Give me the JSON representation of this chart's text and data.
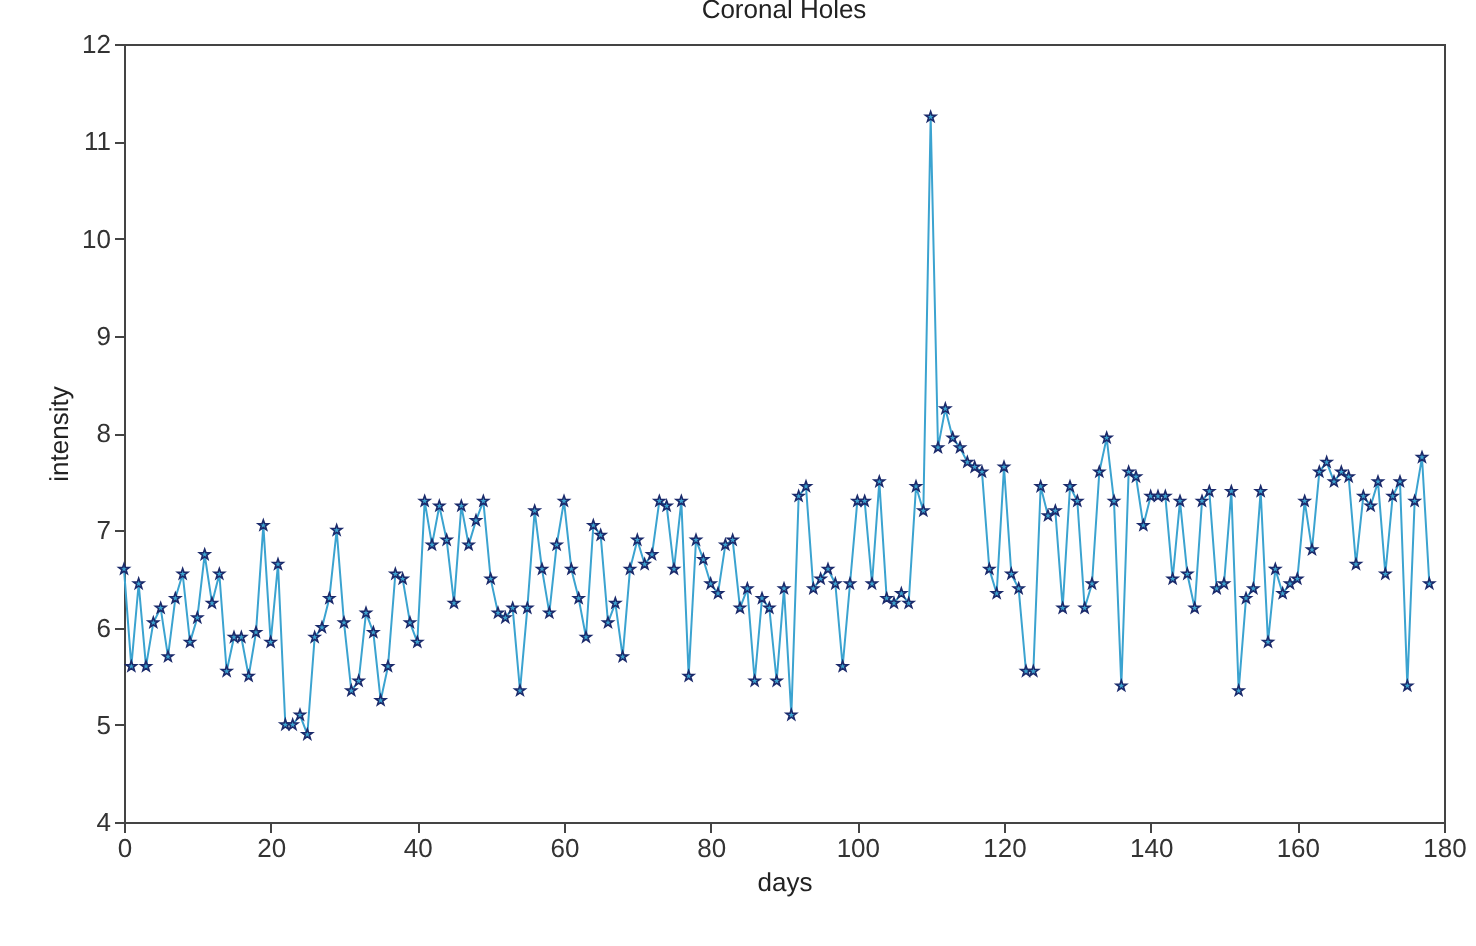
{
  "chart_data": {
    "type": "line",
    "title": "Coronal Holes",
    "xlabel": "days",
    "ylabel": "intensity",
    "x": [
      0,
      1,
      2,
      3,
      4,
      5,
      6,
      7,
      8,
      9,
      10,
      11,
      12,
      13,
      14,
      15,
      16,
      17,
      18,
      19,
      20,
      21,
      22,
      23,
      24,
      25,
      26,
      27,
      28,
      29,
      30,
      31,
      32,
      33,
      34,
      35,
      36,
      37,
      38,
      39,
      40,
      41,
      42,
      43,
      44,
      45,
      46,
      47,
      48,
      49,
      50,
      51,
      52,
      53,
      54,
      55,
      56,
      57,
      58,
      59,
      60,
      61,
      62,
      63,
      64,
      65,
      66,
      67,
      68,
      69,
      70,
      71,
      72,
      73,
      74,
      75,
      76,
      77,
      78,
      79,
      80,
      81,
      82,
      83,
      84,
      85,
      86,
      87,
      88,
      89,
      90,
      91,
      92,
      93,
      94,
      95,
      96,
      97,
      98,
      99,
      100,
      101,
      102,
      103,
      104,
      105,
      106,
      107,
      108,
      109,
      110,
      111,
      112,
      113,
      114,
      115,
      116,
      117,
      118,
      119,
      120,
      121,
      122,
      123,
      124,
      125,
      126,
      127,
      128,
      129,
      130,
      131,
      132,
      133,
      134,
      135,
      136,
      137,
      138,
      139,
      140,
      141,
      142,
      143,
      144,
      145,
      146,
      147,
      148,
      149,
      150,
      151,
      152,
      153,
      154,
      155,
      156,
      157,
      158,
      159,
      160,
      161,
      162,
      163,
      164,
      165,
      166,
      167,
      168,
      169,
      170,
      171,
      172,
      173,
      174,
      175,
      176,
      177,
      178
    ],
    "series": [
      {
        "color": "#3ba3d0",
        "values": [
          6.6,
          5.6,
          6.45,
          5.6,
          6.05,
          6.2,
          5.7,
          6.3,
          6.55,
          5.85,
          6.1,
          6.75,
          6.25,
          6.55,
          5.55,
          5.9,
          5.9,
          5.5,
          5.95,
          7.05,
          5.85,
          6.65,
          5.0,
          5.0,
          5.1,
          4.9,
          5.9,
          6.0,
          6.3,
          7.0,
          6.05,
          5.35,
          5.45,
          6.15,
          5.95,
          5.25,
          5.6,
          6.55,
          6.5,
          6.05,
          5.85,
          7.3,
          6.85,
          7.25,
          6.9,
          6.25,
          7.25,
          6.85,
          7.1,
          7.3,
          6.5,
          6.15,
          6.1,
          6.2,
          5.35,
          6.2,
          7.2,
          6.6,
          6.15,
          6.85,
          7.3,
          6.6,
          6.3,
          5.9,
          7.05,
          6.95,
          6.05,
          6.25,
          5.7,
          6.6,
          6.9,
          6.65,
          6.75,
          7.3,
          7.25,
          6.6,
          7.3,
          5.5,
          6.9,
          6.7,
          6.45,
          6.35,
          6.85,
          6.9,
          6.2,
          6.4,
          5.45,
          6.3,
          6.2,
          5.45,
          6.4,
          5.1,
          7.35,
          7.45,
          6.4,
          6.5,
          6.6,
          6.45,
          5.6,
          6.45,
          7.3,
          7.3,
          6.45,
          7.5,
          6.3,
          6.25,
          6.35,
          6.25,
          7.45,
          7.2,
          11.25,
          7.85,
          8.25,
          7.95,
          7.85,
          7.7,
          7.65,
          7.6,
          6.6,
          6.35,
          7.65,
          6.55,
          6.4,
          5.55,
          5.55,
          7.45,
          7.15,
          7.2,
          6.2,
          7.45,
          7.3,
          6.2,
          6.45,
          7.6,
          7.95,
          7.3,
          5.4,
          7.6,
          7.55,
          7.05,
          7.35,
          7.35,
          7.35,
          6.5,
          7.3,
          6.55,
          6.2,
          7.3,
          7.4,
          6.4,
          6.45,
          7.4,
          5.35,
          6.3,
          6.4,
          7.4,
          5.85,
          6.6,
          6.35,
          6.45,
          6.5,
          7.3,
          6.8,
          7.6,
          7.7,
          7.5,
          7.6,
          7.55,
          6.65,
          7.35,
          7.25,
          7.5,
          6.55,
          7.35,
          7.5,
          5.4,
          7.3,
          7.75,
          6.45
        ]
      }
    ],
    "xlim": [
      0,
      180
    ],
    "xticks": [
      0,
      20,
      40,
      60,
      80,
      100,
      120,
      140,
      160,
      180
    ],
    "ylim": [
      4,
      12
    ],
    "yticks": [
      4,
      5,
      6,
      7,
      8,
      9,
      10,
      11,
      12
    ],
    "marker": "star",
    "line_style": "solid"
  }
}
